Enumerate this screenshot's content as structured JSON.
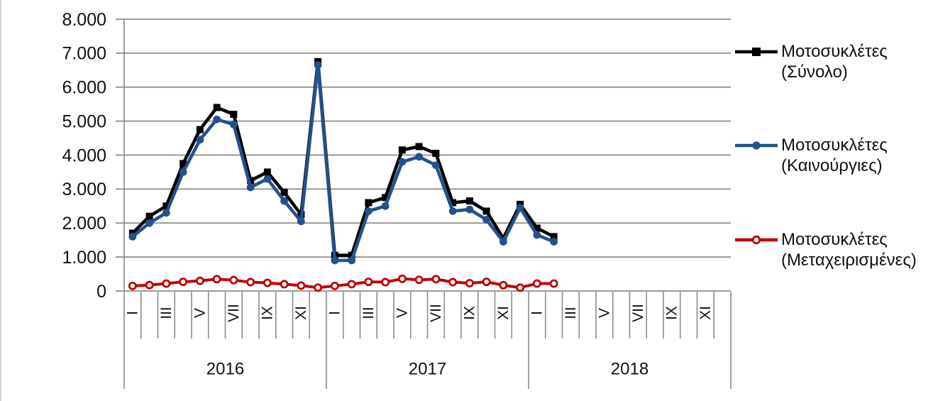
{
  "y_axis": {
    "tick_labels": [
      "8.000",
      "7.000",
      "6.000",
      "5.000",
      "4.000",
      "3.000",
      "2.000",
      "1.000",
      "0"
    ]
  },
  "x_axis": {
    "month_tick_labels": [
      "I",
      "III",
      "V",
      "VII",
      "IX",
      "XI"
    ],
    "years": [
      "2016",
      "2017",
      "2018"
    ]
  },
  "legend": {
    "entries": [
      {
        "line1": "Μοτοσυκλέτες",
        "line2": "(Σύνολο)"
      },
      {
        "line1": "Μοτοσυκλέτες",
        "line2": "(Καινούργιες)"
      },
      {
        "line1": "Μοτοσυκλέτες",
        "line2": "(Μεταχειρισμένες)"
      }
    ]
  },
  "style": {
    "background": "#FFFFFF",
    "grid_color": "#8C8C8C",
    "text_color": "#111111",
    "border_color": "#C9C9C9",
    "series_total_color": "#000000",
    "series_new_color": "#24518B",
    "series_used_color": "#C00000"
  },
  "chart_data": {
    "type": "line",
    "title": "",
    "xlabel": "",
    "ylabel": "",
    "ylim": [
      0,
      8000
    ],
    "y_step": 1000,
    "grid": "horizontal",
    "legend_position": "right",
    "x": [
      "2016-01",
      "2016-02",
      "2016-03",
      "2016-04",
      "2016-05",
      "2016-06",
      "2016-07",
      "2016-08",
      "2016-09",
      "2016-10",
      "2016-11",
      "2016-12",
      "2017-01",
      "2017-02",
      "2017-03",
      "2017-04",
      "2017-05",
      "2017-06",
      "2017-07",
      "2017-08",
      "2017-09",
      "2017-10",
      "2017-11",
      "2017-12",
      "2018-01",
      "2018-02"
    ],
    "series": [
      {
        "name": "Μοτοσυκλέτες (Σύνολο)",
        "color": "#000000",
        "marker": "filled-square",
        "values": [
          1700,
          2200,
          2500,
          3750,
          4750,
          5400,
          5200,
          3250,
          3500,
          2900,
          2250,
          6750,
          1050,
          1050,
          2600,
          2750,
          4150,
          4250,
          4050,
          2600,
          2650,
          2350,
          1550,
          2550,
          1850,
          1600
        ]
      },
      {
        "name": "Μοτοσυκλέτες (Καινούργιες)",
        "color": "#24518B",
        "marker": "filled-circle",
        "values": [
          1600,
          2000,
          2300,
          3500,
          4450,
          5050,
          4900,
          3050,
          3300,
          2650,
          2050,
          6650,
          900,
          900,
          2350,
          2500,
          3800,
          3950,
          3700,
          2350,
          2400,
          2100,
          1450,
          2450,
          1650,
          1450
        ]
      },
      {
        "name": "Μοτοσυκλέτες (Μεταχειρισμένες)",
        "color": "#C00000",
        "marker": "open-circle",
        "values": [
          150,
          175,
          220,
          270,
          300,
          350,
          320,
          260,
          240,
          200,
          160,
          100,
          150,
          200,
          270,
          260,
          360,
          330,
          350,
          260,
          230,
          270,
          170,
          100,
          220,
          220
        ]
      }
    ]
  }
}
